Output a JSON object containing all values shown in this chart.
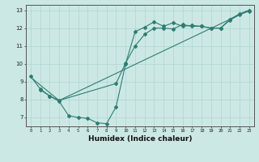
{
  "line1_x": [
    0,
    1,
    2,
    3,
    4,
    5,
    6,
    7,
    8,
    9,
    10,
    11,
    12,
    13,
    14,
    15,
    16,
    17,
    18,
    19,
    20,
    21,
    22,
    23
  ],
  "line1_y": [
    9.3,
    8.6,
    8.2,
    7.9,
    7.1,
    7.0,
    6.95,
    6.7,
    6.65,
    7.6,
    10.0,
    11.8,
    12.05,
    12.35,
    12.1,
    12.3,
    12.1,
    12.15,
    12.1,
    12.0,
    12.0,
    12.5,
    12.8,
    13.0
  ],
  "line2_x": [
    1,
    2,
    3,
    9,
    10,
    11,
    12,
    13,
    14,
    15,
    16,
    17,
    18,
    19,
    20,
    21,
    22,
    23
  ],
  "line2_y": [
    8.55,
    8.2,
    7.95,
    8.9,
    10.05,
    11.0,
    11.65,
    12.0,
    12.0,
    11.95,
    12.2,
    12.1,
    12.1,
    12.0,
    12.0,
    12.45,
    12.75,
    12.95
  ],
  "line3_x": [
    0,
    3,
    23
  ],
  "line3_y": [
    9.25,
    7.95,
    13.0
  ],
  "color": "#2e7d72",
  "bg_color": "#cce8e5",
  "grid_color": "#aed4d0",
  "xlabel": "Humidex (Indice chaleur)",
  "xlim": [
    -0.5,
    23.5
  ],
  "ylim": [
    6.5,
    13.3
  ],
  "yticks": [
    7,
    8,
    9,
    10,
    11,
    12,
    13
  ],
  "xticks": [
    0,
    1,
    2,
    3,
    4,
    5,
    6,
    7,
    8,
    9,
    10,
    11,
    12,
    13,
    14,
    15,
    16,
    17,
    18,
    19,
    20,
    21,
    22,
    23
  ]
}
